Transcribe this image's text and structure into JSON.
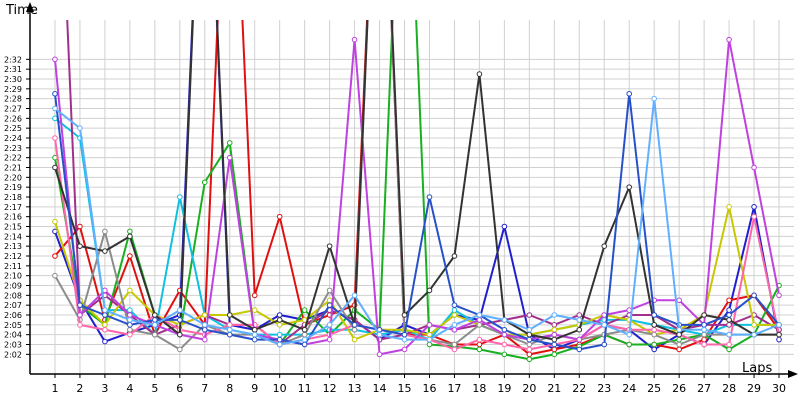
{
  "chart_data": {
    "type": "line",
    "xlabel": "Laps",
    "ylabel": "Time",
    "grid": true,
    "marker": "circle",
    "x": [
      1,
      2,
      3,
      4,
      5,
      6,
      7,
      8,
      9,
      10,
      11,
      12,
      13,
      14,
      15,
      16,
      17,
      18,
      19,
      20,
      21,
      22,
      23,
      24,
      25,
      26,
      27,
      28,
      29,
      30
    ],
    "xlim": [
      0,
      30.6
    ],
    "ylim_seconds": [
      120,
      156
    ],
    "x_tick_labels": [
      "1",
      "2",
      "3",
      "4",
      "5",
      "6",
      "7",
      "8",
      "9",
      "10",
      "11",
      "12",
      "13",
      "14",
      "15",
      "16",
      "17",
      "18",
      "19",
      "20",
      "21",
      "22",
      "23",
      "24",
      "25",
      "26",
      "27",
      "28",
      "29",
      "30"
    ],
    "y_tick_labels": [
      "2:02",
      "2:03",
      "2:04",
      "2:05",
      "2:06",
      "2:07",
      "2:08",
      "2:09",
      "2:10",
      "2:11",
      "2:12",
      "2:13",
      "2:14",
      "2:15",
      "2:16",
      "2:17",
      "2:18",
      "2:19",
      "2:20",
      "2:21",
      "2:22",
      "2:23",
      "2:24",
      "2:25",
      "2:26",
      "2:27",
      "2:28",
      "2:29",
      "2:30",
      "2:31",
      "2:32"
    ],
    "y_tick_seconds": [
      122,
      123,
      124,
      125,
      126,
      127,
      128,
      129,
      130,
      131,
      132,
      133,
      134,
      135,
      136,
      137,
      138,
      139,
      140,
      141,
      142,
      143,
      144,
      145,
      146,
      147,
      148,
      149,
      150,
      151,
      152
    ],
    "series": [
      {
        "color": "#1f1fd0",
        "values": [
          134.5,
          127.5,
          123.3,
          124.2,
          125.0,
          126.0,
          185,
          125.0,
          124.5,
          126.0,
          125.5,
          126.5,
          125.5,
          123.5,
          125.0,
          124.0,
          126.0,
          125.5,
          135.0,
          124.0,
          122.5,
          123.5,
          125.0,
          124.5,
          122.5,
          124.0,
          123.0,
          126.5,
          137.0,
          123.5
        ]
      },
      {
        "color": "#e01010",
        "values": [
          132.0,
          135.0,
          125.5,
          132.0,
          124.0,
          128.5,
          125.0,
          185,
          128.0,
          136.0,
          125.0,
          126.0,
          127.0,
          185,
          124.0,
          124.0,
          123.0,
          123.0,
          124.0,
          122.0,
          122.5,
          123.0,
          124.0,
          123.0,
          123.0,
          122.5,
          123.5,
          127.5,
          128.0,
          124.5
        ]
      },
      {
        "color": "#18b020",
        "values": [
          142.0,
          127.0,
          125.0,
          134.5,
          126.0,
          124.0,
          139.5,
          143.5,
          124.0,
          123.0,
          126.5,
          124.0,
          126.5,
          124.5,
          185,
          123.0,
          122.8,
          122.5,
          122.0,
          121.5,
          122.0,
          122.8,
          124.0,
          123.0,
          123.0,
          123.5,
          124.0,
          122.5,
          124.0,
          129.0
        ]
      },
      {
        "color": "#10c0e0",
        "values": [
          146.0,
          144.0,
          126.5,
          126.5,
          124.0,
          138.0,
          126.0,
          124.5,
          124.0,
          124.0,
          124.0,
          124.5,
          124.5,
          124.0,
          124.5,
          123.5,
          126.5,
          125.0,
          124.0,
          124.0,
          124.5,
          125.0,
          125.5,
          125.5,
          125.0,
          124.5,
          124.0,
          125.0,
          125.0,
          125.0
        ]
      },
      {
        "color": "#a0308c",
        "values": [
          185,
          126.0,
          128.0,
          126.0,
          124.0,
          125.0,
          126.0,
          125.0,
          125.0,
          123.0,
          125.0,
          126.5,
          125.5,
          123.5,
          124.0,
          125.0,
          124.5,
          125.0,
          125.5,
          126.0,
          125.0,
          126.0,
          125.0,
          126.0,
          126.0,
          124.5,
          125.0,
          125.0,
          126.0,
          124.5
        ]
      },
      {
        "color": "#c8c800",
        "values": [
          135.5,
          127.5,
          125.0,
          128.5,
          126.0,
          125.0,
          126.0,
          126.0,
          126.5,
          125.0,
          125.5,
          127.5,
          123.5,
          124.5,
          124.5,
          124.0,
          126.0,
          125.0,
          124.0,
          124.0,
          124.5,
          125.0,
          126.0,
          125.5,
          124.0,
          124.5,
          126.0,
          137.0,
          125.0,
          125.0
        ]
      },
      {
        "color": "#8c8c8c",
        "values": [
          130.0,
          125.5,
          134.5,
          124.5,
          124.0,
          122.5,
          125.0,
          124.0,
          124.0,
          123.0,
          124.0,
          128.5,
          124.5,
          185,
          124.0,
          123.5,
          123.0,
          125.0,
          124.0,
          123.0,
          124.0,
          123.5,
          124.0,
          124.5,
          124.0,
          123.0,
          124.0,
          124.0,
          124.0,
          124.0
        ]
      },
      {
        "color": "#ff66aa",
        "values": [
          144.0,
          125.0,
          124.5,
          124.0,
          126.0,
          124.5,
          124.0,
          125.0,
          125.0,
          123.0,
          123.5,
          124.0,
          125.0,
          124.5,
          124.0,
          123.5,
          122.5,
          123.5,
          123.0,
          122.5,
          123.0,
          123.5,
          125.0,
          124.5,
          124.5,
          124.0,
          123.0,
          123.0,
          136.0,
          124.0
        ]
      },
      {
        "color": "#c040e0",
        "values": [
          152.0,
          126.0,
          128.5,
          126.0,
          125.0,
          124.0,
          123.5,
          142.0,
          124.0,
          123.5,
          123.0,
          123.5,
          154.0,
          122.0,
          122.5,
          125.0,
          124.5,
          125.5,
          124.0,
          123.5,
          124.0,
          123.5,
          126.0,
          126.5,
          127.5,
          127.5,
          125.0,
          154.0,
          141.0,
          128.0
        ]
      },
      {
        "color": "#333333",
        "values": [
          141.0,
          133.0,
          132.5,
          134.0,
          126.0,
          124.0,
          185,
          126.0,
          124.5,
          125.5,
          124.5,
          133.0,
          125.0,
          185,
          126.0,
          128.5,
          132.0,
          150.5,
          125.5,
          124.0,
          123.5,
          124.5,
          133.0,
          139.0,
          125.0,
          124.0,
          126.0,
          125.5,
          124.0,
          124.0
        ]
      },
      {
        "color": "#2850c8",
        "values": [
          148.5,
          127.0,
          126.0,
          125.0,
          125.5,
          125.5,
          124.5,
          124.0,
          123.5,
          123.5,
          123.0,
          127.0,
          125.0,
          124.5,
          124.0,
          138.0,
          127.0,
          126.0,
          124.5,
          123.5,
          123.0,
          122.5,
          123.0,
          148.5,
          126.0,
          125.0,
          125.0,
          126.0,
          128.0,
          125.0
        ]
      },
      {
        "color": "#60b0ff",
        "values": [
          147.0,
          145.0,
          126.5,
          125.5,
          125.0,
          126.5,
          125.0,
          124.5,
          124.0,
          123.0,
          123.5,
          125.0,
          128.0,
          124.0,
          123.5,
          123.5,
          125.0,
          126.0,
          125.5,
          124.5,
          126.0,
          125.5,
          125.0,
          124.0,
          148.0,
          124.5,
          124.5,
          124.0,
          124.0,
          125.0
        ]
      }
    ]
  }
}
